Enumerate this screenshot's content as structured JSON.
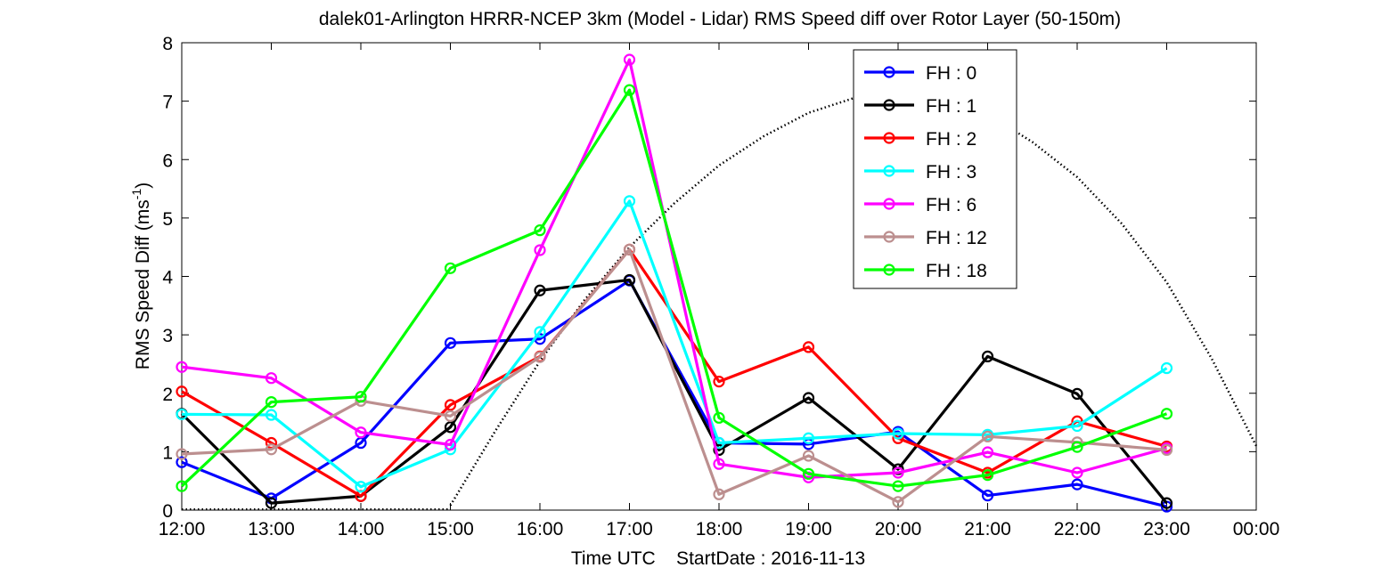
{
  "chart_data": {
    "type": "line",
    "title": "dalek01-Arlington HRRR-NCEP 3km (Model - Lidar) RMS Speed diff over Rotor Layer (50-150m)",
    "ylabel_main": "RMS Speed Diff (ms",
    "ylabel_sup": "-1",
    "ylabel_close": ")",
    "xlabel": "Time UTC    StartDate : 2016-11-13",
    "x_ticks": [
      "12:00",
      "13:00",
      "14:00",
      "15:00",
      "16:00",
      "17:00",
      "18:00",
      "19:00",
      "20:00",
      "21:00",
      "22:00",
      "23:00",
      "00:00"
    ],
    "y_ticks": [
      "0",
      "1",
      "2",
      "3",
      "4",
      "5",
      "6",
      "7",
      "8"
    ],
    "ylim": [
      0,
      8
    ],
    "legend_position": "top-right inside",
    "grid": false,
    "series": [
      {
        "name": "FH : 0",
        "color": "#0000ff",
        "values": [
          0.82,
          0.2,
          1.15,
          2.86,
          2.93,
          3.93,
          1.15,
          1.13,
          1.34,
          0.25,
          0.44,
          0.06
        ]
      },
      {
        "name": "FH : 1",
        "color": "#000000",
        "values": [
          1.65,
          0.12,
          0.24,
          1.42,
          3.76,
          3.94,
          1.03,
          1.92,
          0.7,
          2.63,
          1.99,
          0.12
        ]
      },
      {
        "name": "FH : 2",
        "color": "#ff0000",
        "values": [
          2.03,
          1.15,
          0.24,
          1.8,
          2.63,
          4.46,
          2.2,
          2.79,
          1.23,
          0.64,
          1.52,
          1.09
        ]
      },
      {
        "name": "FH : 3",
        "color": "#00ffff",
        "values": [
          1.64,
          1.63,
          0.4,
          1.04,
          3.05,
          5.29,
          1.15,
          1.23,
          1.31,
          1.29,
          1.44,
          2.43
        ]
      },
      {
        "name": "FH : 6",
        "color": "#ff00ff",
        "values": [
          2.45,
          2.26,
          1.33,
          1.12,
          4.45,
          7.71,
          0.79,
          0.56,
          0.64,
          0.99,
          0.64,
          1.06
        ]
      },
      {
        "name": "FH : 12",
        "color": "#bc8f8f",
        "values": [
          0.96,
          1.04,
          1.87,
          1.61,
          2.62,
          4.46,
          0.27,
          0.93,
          0.14,
          1.26,
          1.16,
          1.03
        ]
      },
      {
        "name": "FH : 18",
        "color": "#00ff00",
        "values": [
          0.41,
          1.85,
          1.94,
          4.14,
          4.79,
          7.19,
          1.58,
          0.62,
          0.41,
          0.6,
          1.08,
          1.65
        ]
      }
    ],
    "dotted_curve": {
      "color": "#000000",
      "baseline_x": [
        0,
        3
      ],
      "x": [
        3,
        3.5,
        4,
        4.5,
        5,
        5.5,
        6,
        6.5,
        7,
        7.5,
        8,
        8.5,
        9,
        9.5,
        10,
        10.5,
        11,
        11.5,
        12
      ],
      "y": [
        0.08,
        1.35,
        2.55,
        3.6,
        4.5,
        5.25,
        5.9,
        6.4,
        6.8,
        7.05,
        7.15,
        7.05,
        6.78,
        6.3,
        5.7,
        4.9,
        3.9,
        2.6,
        1.1
      ]
    }
  }
}
